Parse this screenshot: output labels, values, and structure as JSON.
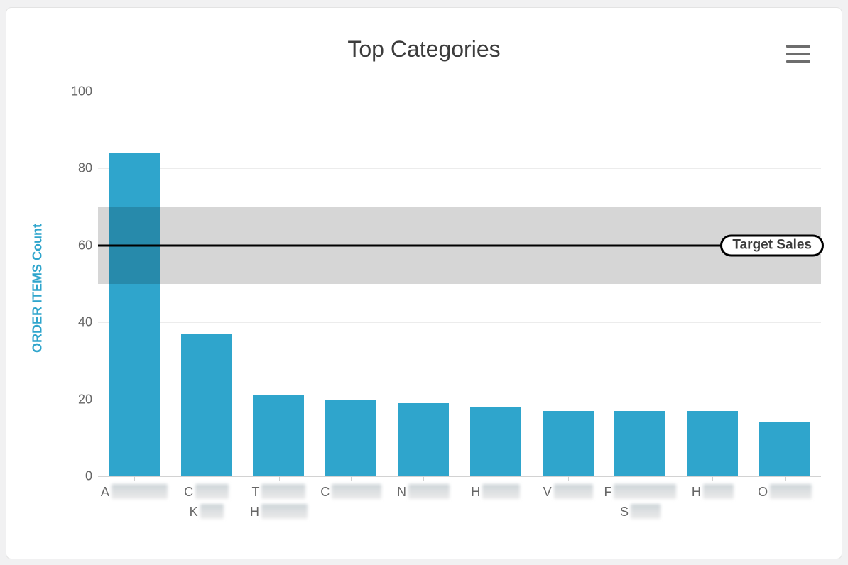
{
  "header": {
    "title": "Top Categories",
    "menu_icon": "hamburger-icon"
  },
  "chart_data": {
    "type": "bar",
    "title": "Top Categories",
    "xlabel": "",
    "ylabel": "ORDER ITEMS Count",
    "ylim": [
      0,
      100
    ],
    "yticks": [
      0,
      20,
      40,
      60,
      80,
      100
    ],
    "grid": true,
    "legend": "none",
    "bar_color": "#2fa5cc",
    "title_color": "#3d3d3d",
    "axis_label_color": "#666666",
    "categories_redacted": true,
    "categories": [
      {
        "lines": [
          {
            "letter": "A",
            "blur_width": 79
          }
        ]
      },
      {
        "lines": [
          {
            "letter": "C",
            "blur_width": 47
          },
          {
            "letter": "K",
            "blur_width": 33
          }
        ]
      },
      {
        "lines": [
          {
            "letter": "T",
            "blur_width": 62
          },
          {
            "letter": "H",
            "blur_width": 65
          }
        ]
      },
      {
        "lines": [
          {
            "letter": "C",
            "blur_width": 70
          }
        ]
      },
      {
        "lines": [
          {
            "letter": "N",
            "blur_width": 58
          }
        ]
      },
      {
        "lines": [
          {
            "letter": "H",
            "blur_width": 53
          }
        ]
      },
      {
        "lines": [
          {
            "letter": "V",
            "blur_width": 55
          }
        ]
      },
      {
        "lines": [
          {
            "letter": "F",
            "blur_width": 88
          },
          {
            "letter": "S",
            "blur_width": 42
          }
        ]
      },
      {
        "lines": [
          {
            "letter": "H",
            "blur_width": 43
          }
        ]
      },
      {
        "lines": [
          {
            "letter": "O",
            "blur_width": 59
          }
        ]
      }
    ],
    "values": [
      84,
      37,
      21,
      20,
      19,
      18,
      17,
      17,
      17,
      14
    ],
    "plot_band": {
      "from": 50,
      "to": 70,
      "color": "rgba(0,0,0,0.16)"
    },
    "plot_line": {
      "value": 60,
      "label": "Target Sales",
      "color": "#000000"
    }
  }
}
